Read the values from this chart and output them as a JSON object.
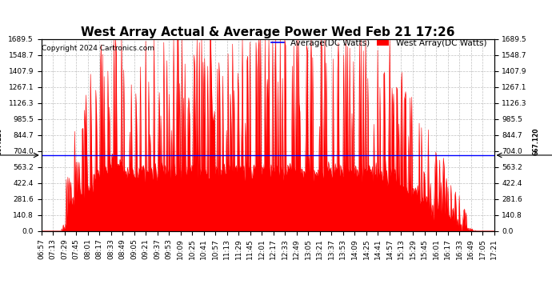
{
  "title": "West Array Actual & Average Power Wed Feb 21 17:26",
  "copyright": "Copyright 2024 Cartronics.com",
  "legend_average": "Average(DC Watts)",
  "legend_west": "West Array(DC Watts)",
  "y_max": 1689.5,
  "y_min": 0.0,
  "y_ticks": [
    0.0,
    140.8,
    281.6,
    422.4,
    563.2,
    704.0,
    844.7,
    985.5,
    1126.3,
    1267.1,
    1407.9,
    1548.7,
    1689.5
  ],
  "average_line_value": 667.12,
  "average_line_label": "667.120",
  "average_color": "#0000ff",
  "west_array_color": "#ff0000",
  "background_color": "#ffffff",
  "grid_color": "#b0b0b0",
  "title_fontsize": 11,
  "copyright_fontsize": 6.5,
  "legend_fontsize": 7.5,
  "tick_fontsize": 6.5,
  "x_tick_labels": [
    "06:57",
    "07:13",
    "07:29",
    "07:45",
    "08:01",
    "08:17",
    "08:33",
    "08:49",
    "09:05",
    "09:21",
    "09:37",
    "09:53",
    "10:09",
    "10:25",
    "10:41",
    "10:57",
    "11:13",
    "11:29",
    "11:45",
    "12:01",
    "12:17",
    "12:33",
    "12:49",
    "13:05",
    "13:21",
    "13:37",
    "13:53",
    "14:09",
    "14:25",
    "14:41",
    "14:57",
    "15:13",
    "15:29",
    "15:45",
    "16:01",
    "16:17",
    "16:33",
    "16:49",
    "17:05",
    "17:21"
  ],
  "n_points": 600
}
